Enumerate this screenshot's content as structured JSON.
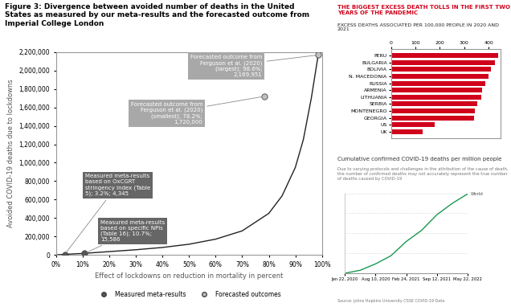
{
  "chart_data": [
    {
      "type": "scatter",
      "title": "Figure 3: Divergence between avoided number of deaths in the United States as measured by our meta-results and the forecasted outcome from Imperial College London",
      "x_label": "Effect of lockdowns on reduction in mortality in percent",
      "y_label": "Avoided COVID-19 deaths due to lockdowns",
      "xlim": [
        0,
        100
      ],
      "xticks": [
        {
          "value": 0,
          "label": "0%"
        },
        {
          "value": 10,
          "label": "10%"
        },
        {
          "value": 20,
          "label": "20%"
        },
        {
          "value": 30,
          "label": "30%"
        },
        {
          "value": 40,
          "label": "40%"
        },
        {
          "value": 50,
          "label": "50%"
        },
        {
          "value": 60,
          "label": "60%"
        },
        {
          "value": 70,
          "label": "70%"
        },
        {
          "value": 80,
          "label": "80%"
        },
        {
          "value": 90,
          "label": "90%"
        },
        {
          "value": 100,
          "label": "100%"
        }
      ],
      "ylim": [
        0,
        2200000
      ],
      "yticks": [
        0,
        {
          "value": 200000,
          "label": "200,000"
        },
        {
          "value": 400000,
          "label": "400,000"
        },
        {
          "value": 600000,
          "label": "600,000"
        },
        {
          "value": 800000,
          "label": "800,000"
        },
        {
          "value": 1000000,
          "label": "1,000,000"
        },
        {
          "value": 1200000,
          "label": "1,200,000"
        },
        {
          "value": 1400000,
          "label": "1,400,000"
        },
        {
          "value": 1600000,
          "label": "1,600,000"
        },
        {
          "value": 1800000,
          "label": "1,800,000"
        },
        {
          "value": 2000000,
          "label": "2,000,000"
        },
        {
          "value": 2200000,
          "label": "2,200,000"
        }
      ],
      "grid": false,
      "legend": "bottom",
      "series": [
        {
          "type": "line",
          "color": "#222222",
          "x": [
            0,
            10,
            20,
            30,
            40,
            50,
            60,
            70,
            80,
            85,
            90,
            93,
            96,
            98.6
          ],
          "values": [
            0,
            15000,
            35000,
            55000,
            80000,
            115000,
            170000,
            260000,
            450000,
            640000,
            950000,
            1250000,
            1700000,
            2169951
          ]
        },
        {
          "name": "Measured meta-results",
          "color": "#555555",
          "marker": "circle",
          "x": [
            3.2,
            10.7
          ],
          "values": [
            4345,
            15586
          ]
        },
        {
          "name": "Forecasted outcomes",
          "color": "#c0c0c0",
          "marker": "circle",
          "x": [
            78.2,
            98.6
          ],
          "values": [
            1720000,
            2169951
          ]
        }
      ],
      "annotations": [
        {
          "text": "Forecasted outcome from Ferguson et al. (2020) (largest); 98.6%; 2,169,951",
          "x": 98.6,
          "y": 2169951
        },
        {
          "text": "Forecasted outcome from Ferguson et al. (2020) (smallest); 78.2%; 1,720,000",
          "x": 78.2,
          "y": 1720000
        },
        {
          "text": "Measured meta-results based on OxCGRT stringency index (Table 5); 3.2%; 4,345",
          "x": 3.2,
          "y": 4345
        },
        {
          "text": "Measured meta-results based on specific NPIs (Table 16); 10.7%; 15,586",
          "x": 10.7,
          "y": 15586
        }
      ]
    },
    {
      "type": "bar",
      "orientation": "horizontal",
      "title": "THE BIGGEST EXCESS DEATH TOLLS IN THE FIRST TWO YEARS OF THE PANDEMIC",
      "subtitle": "EXCESS DEATHS ASSOCIATED PER 100,000 PEOPLE IN 2020 AND 2021",
      "categories": [
        "PERU",
        "BULGARIA",
        "BOLIVIA",
        "N. MACEDONIA",
        "RUSSIA",
        "ARMENIA",
        "LITHUANIA",
        "SERBIA",
        "MONTENEGRO",
        "GEORGIA",
        "US",
        "UK"
      ],
      "values": [
        440,
        425,
        410,
        400,
        385,
        375,
        370,
        355,
        345,
        340,
        180,
        130
      ],
      "color": "#d0021b",
      "xlim": [
        0,
        450
      ],
      "xticks": [
        0,
        100,
        200,
        300,
        400
      ]
    },
    {
      "type": "line",
      "title": "Cumulative confirmed COVID-19 deaths per million people",
      "subtitle": "Due to varying protocols and challenges in the attribution of the cause of death, the number of confirmed deaths may not accurately represent the true number of deaths caused by COVID-19",
      "source": "Source: Johns Hopkins University CSSE COVID-19 Data",
      "categories": [
        "Jan 22, 2020",
        null,
        "Aug 10, 2020",
        null,
        "Feb 24, 2021",
        null,
        "Sep 12, 2021",
        null,
        "May 22, 2022"
      ],
      "series": [
        {
          "name": "World",
          "color": "#1a9850",
          "values": [
            0,
            30,
            94,
            175,
            318,
            430,
            587,
            700,
            795
          ]
        }
      ],
      "ylim": [
        0,
        800
      ],
      "yticks": [
        0,
        200,
        400,
        600,
        800
      ],
      "grid": true,
      "tick_labels": "x"
    }
  ]
}
